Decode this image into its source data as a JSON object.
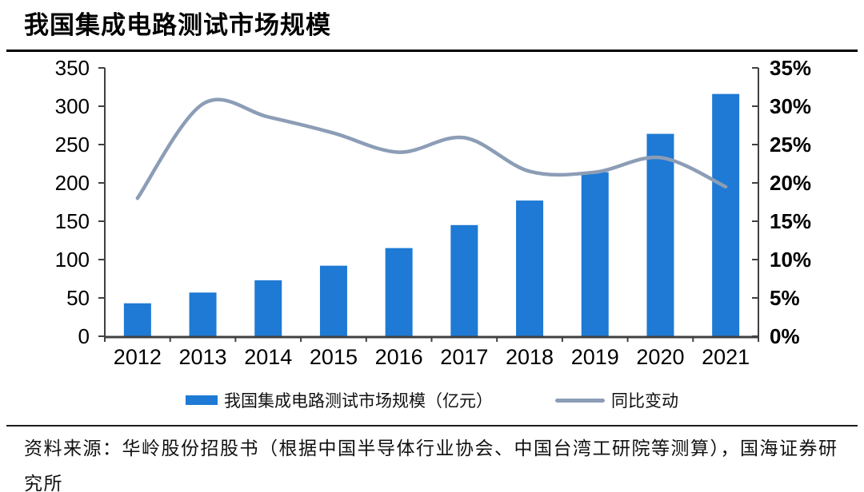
{
  "title": "我国集成电路测试市场规模",
  "legend": {
    "bar_label": "我国集成电路测试市场规模（亿元）",
    "line_label": "同比变动"
  },
  "source": "资料来源：华岭股份招股书（根据中国半导体行业协会、中国台湾工研院等测算），国海证券研究所",
  "colors": {
    "bar": "#1E7AD4",
    "line": "#8C9DB6",
    "axis": "#404040",
    "text": "#000000"
  },
  "chart_data": {
    "type": "bar",
    "title": "我国集成电路测试市场规模",
    "categories": [
      "2012",
      "2013",
      "2014",
      "2015",
      "2016",
      "2017",
      "2018",
      "2019",
      "2020",
      "2021"
    ],
    "series": [
      {
        "name": "我国集成电路测试市场规模（亿元）",
        "type": "bar",
        "axis": "left",
        "color": "#1E7AD4",
        "values": [
          43,
          57,
          73,
          92,
          115,
          145,
          177,
          214,
          264,
          316
        ]
      },
      {
        "name": "同比变动",
        "type": "line",
        "axis": "right",
        "color": "#8C9DB6",
        "values": [
          18.0,
          30.3,
          28.6,
          26.5,
          24.0,
          25.9,
          21.5,
          21.4,
          23.3,
          19.5
        ]
      }
    ],
    "left_axis": {
      "min": 0,
      "max": 350,
      "step": 50,
      "tick_labels": [
        "0",
        "50",
        "100",
        "150",
        "200",
        "250",
        "300",
        "350"
      ]
    },
    "right_axis": {
      "min": 0,
      "max": 35,
      "step": 5,
      "unit": "%",
      "tick_labels": [
        "0%",
        "5%",
        "10%",
        "15%",
        "20%",
        "25%",
        "30%",
        "35%"
      ]
    },
    "grid": false,
    "legend_position": "bottom"
  }
}
